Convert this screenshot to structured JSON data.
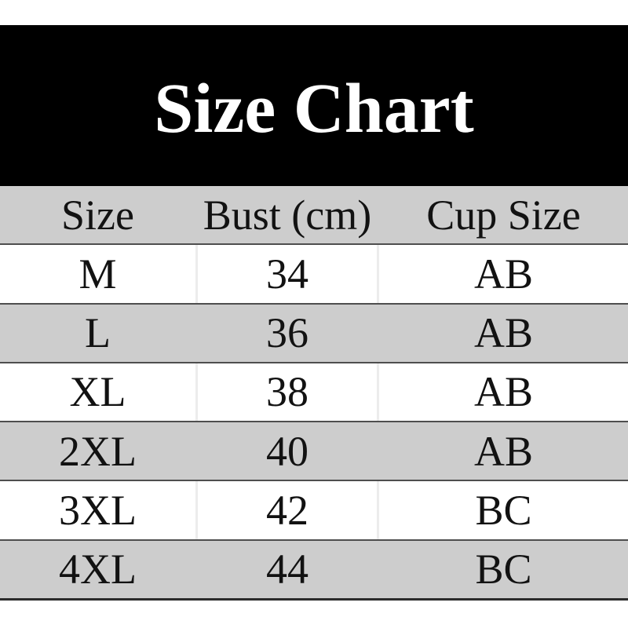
{
  "colors": {
    "banner_bg": "#000000",
    "banner_text": "#ffffff",
    "header_gray": "#cdcdcd",
    "row_gray": "#cdcdcd",
    "row_white": "#ffffff",
    "row_line": "#4e4e4e",
    "bottom_line": "#2b2b2b",
    "column_divider": "#ececec",
    "text": "#121212"
  },
  "chart_data": {
    "type": "table",
    "title": "Size Chart",
    "columns": [
      "Size",
      "Bust (cm)",
      "Cup Size"
    ],
    "rows": [
      [
        "M",
        "34",
        "AB"
      ],
      [
        "L",
        "36",
        "AB"
      ],
      [
        "XL",
        "38",
        "AB"
      ],
      [
        "2XL",
        "40",
        "AB"
      ],
      [
        "3XL",
        "42",
        "BC"
      ],
      [
        "4XL",
        "44",
        "BC"
      ]
    ],
    "layout": {
      "header_row_shaded": true,
      "zebra_striping": "alternating white and gray data rows",
      "text_align": "center",
      "title_position": "black banner above table"
    }
  }
}
